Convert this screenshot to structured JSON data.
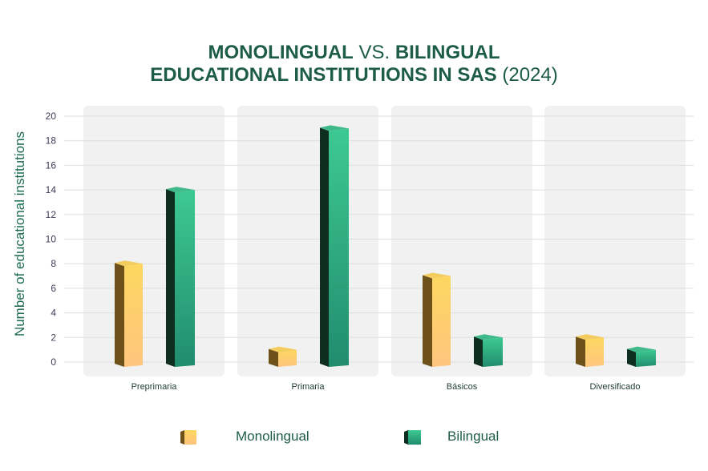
{
  "title": {
    "line1_a": "MONOLINGUAL",
    "line1_b": " VS. ",
    "line1_c": "BILINGUAL",
    "line2_a": "EDUCATIONAL INSTITUTIONS IN SAS",
    "line2_b": " (2024)"
  },
  "colors": {
    "mono_front": "#fdd36a",
    "mono_side": "#6e5019",
    "bi_front": "#35c08e",
    "bi_side": "#0e2e22",
    "panel": "#f1f1f1",
    "grid": "#dddddd"
  },
  "chart_data": {
    "type": "bar",
    "title": "MONOLINGUAL VS. BILINGUAL EDUCATIONAL INSTITUTIONS IN SAS (2024)",
    "xlabel": "",
    "ylabel": "Number of educational institutions",
    "ylim": [
      0,
      20
    ],
    "yticks": [
      "0",
      "2",
      "4",
      "6",
      "8",
      "10",
      "12",
      "14",
      "16",
      "18",
      "20"
    ],
    "grid": true,
    "legend_position": "bottom",
    "categories": [
      "Preprimaria",
      "Primaria",
      "Básicos",
      "Diversificado"
    ],
    "series": [
      {
        "name": "Monolingual",
        "values": [
          8,
          1,
          7,
          2
        ]
      },
      {
        "name": "Bilingual",
        "values": [
          14,
          19,
          2,
          1
        ]
      }
    ]
  }
}
